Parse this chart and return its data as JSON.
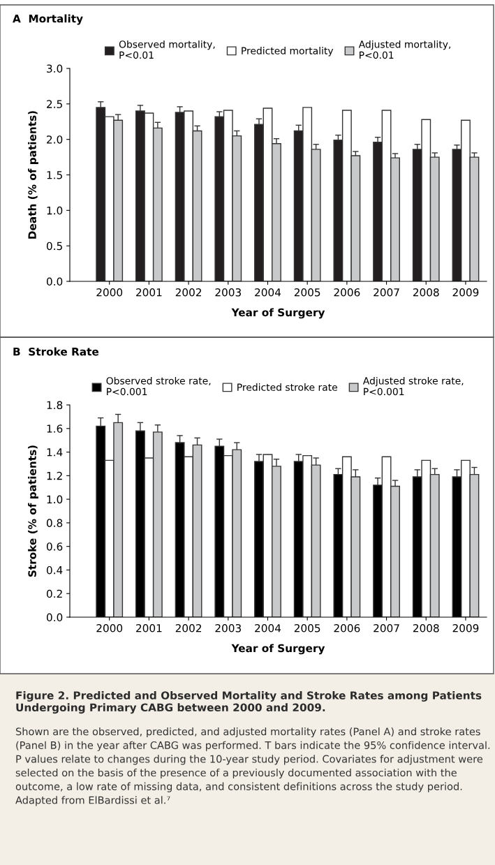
{
  "chart_data": [
    {
      "type": "bar",
      "title": "A  Mortality",
      "xlabel": "Year of Surgery",
      "ylabel": "Death (% of patients)",
      "categories": [
        "2000",
        "2001",
        "2002",
        "2003",
        "2004",
        "2005",
        "2006",
        "2007",
        "2008",
        "2009"
      ],
      "series": [
        {
          "name": "Observed mortality,\nP<0.01",
          "color": "#231f20",
          "values": [
            2.45,
            2.4,
            2.38,
            2.32,
            2.21,
            2.12,
            1.99,
            1.96,
            1.86,
            1.86
          ],
          "errors": [
            0.08,
            0.08,
            0.08,
            0.07,
            0.08,
            0.08,
            0.07,
            0.07,
            0.07,
            0.06
          ]
        },
        {
          "name": "Predicted mortality",
          "color": "#ffffff",
          "values": [
            2.32,
            2.37,
            2.4,
            2.41,
            2.44,
            2.45,
            2.41,
            2.41,
            2.28,
            2.27
          ]
        },
        {
          "name": "Adjusted mortality,\nP<0.01",
          "color": "#c8c9cb",
          "values": [
            2.27,
            2.16,
            2.12,
            2.05,
            1.94,
            1.86,
            1.77,
            1.74,
            1.75,
            1.75
          ],
          "errors": [
            0.08,
            0.08,
            0.07,
            0.07,
            0.07,
            0.07,
            0.06,
            0.06,
            0.06,
            0.06
          ]
        }
      ],
      "ylim": [
        0,
        3.0
      ],
      "yticks": [
        {
          "value": 0,
          "label": "0.0"
        },
        0.5,
        {
          "value": 1,
          "label": "1.0"
        },
        1.5,
        {
          "value": 2,
          "label": "2.0"
        },
        2.5,
        {
          "value": 3,
          "label": "3.0"
        }
      ],
      "legend": "top",
      "grid": false
    },
    {
      "type": "bar",
      "title": "B  Stroke Rate",
      "xlabel": "Year of Surgery",
      "ylabel": "Stroke (% of patients)",
      "categories": [
        "2000",
        "2001",
        "2002",
        "2003",
        "2004",
        "2005",
        "2006",
        "2007",
        "2008",
        "2009"
      ],
      "series": [
        {
          "name": "Observed stroke rate,\nP<0.001",
          "color": "#000000",
          "values": [
            1.62,
            1.58,
            1.48,
            1.45,
            1.32,
            1.32,
            1.21,
            1.12,
            1.19,
            1.19
          ],
          "errors": [
            0.07,
            0.07,
            0.06,
            0.06,
            0.06,
            0.06,
            0.05,
            0.06,
            0.06,
            0.06
          ]
        },
        {
          "name": "Predicted stroke rate",
          "color": "#ffffff",
          "values": [
            1.33,
            1.35,
            1.36,
            1.37,
            1.38,
            1.37,
            1.36,
            1.36,
            1.33,
            1.33
          ]
        },
        {
          "name": "Adjusted stroke rate,\nP<0.001",
          "color": "#c8c9cb",
          "values": [
            1.65,
            1.57,
            1.46,
            1.42,
            1.28,
            1.29,
            1.19,
            1.11,
            1.21,
            1.21
          ],
          "errors": [
            0.07,
            0.06,
            0.06,
            0.06,
            0.06,
            0.06,
            0.06,
            0.05,
            0.05,
            0.06
          ]
        }
      ],
      "ylim": [
        0,
        1.8
      ],
      "yticks": [
        {
          "value": 0,
          "label": "0.0"
        },
        0.2,
        0.4,
        0.6,
        0.8,
        {
          "value": 1,
          "label": "1.0"
        },
        1.2,
        1.4,
        1.6,
        1.8
      ],
      "legend": "top",
      "grid": false,
      "annotations": [
        "Figure 2. Predicted and Observed Mortality and Stroke Rates among Patients Undergoing Primary CABG between 2000 and 2009.",
        "Shown are the observed, predicted, and adjusted mortality rates (Panel A) and stroke rates (Panel B) in the year after CABG was performed. T bars indicate the 95% confidence interval. P values relate to changes during the 10-year study period. Covariates for adjustment were selected on the basis of the presence of a previously documented association with the outcome, a low rate of missing data, and consistent definitions across the study period. Adapted from ElBardissi et al.⁷"
      ]
    }
  ]
}
